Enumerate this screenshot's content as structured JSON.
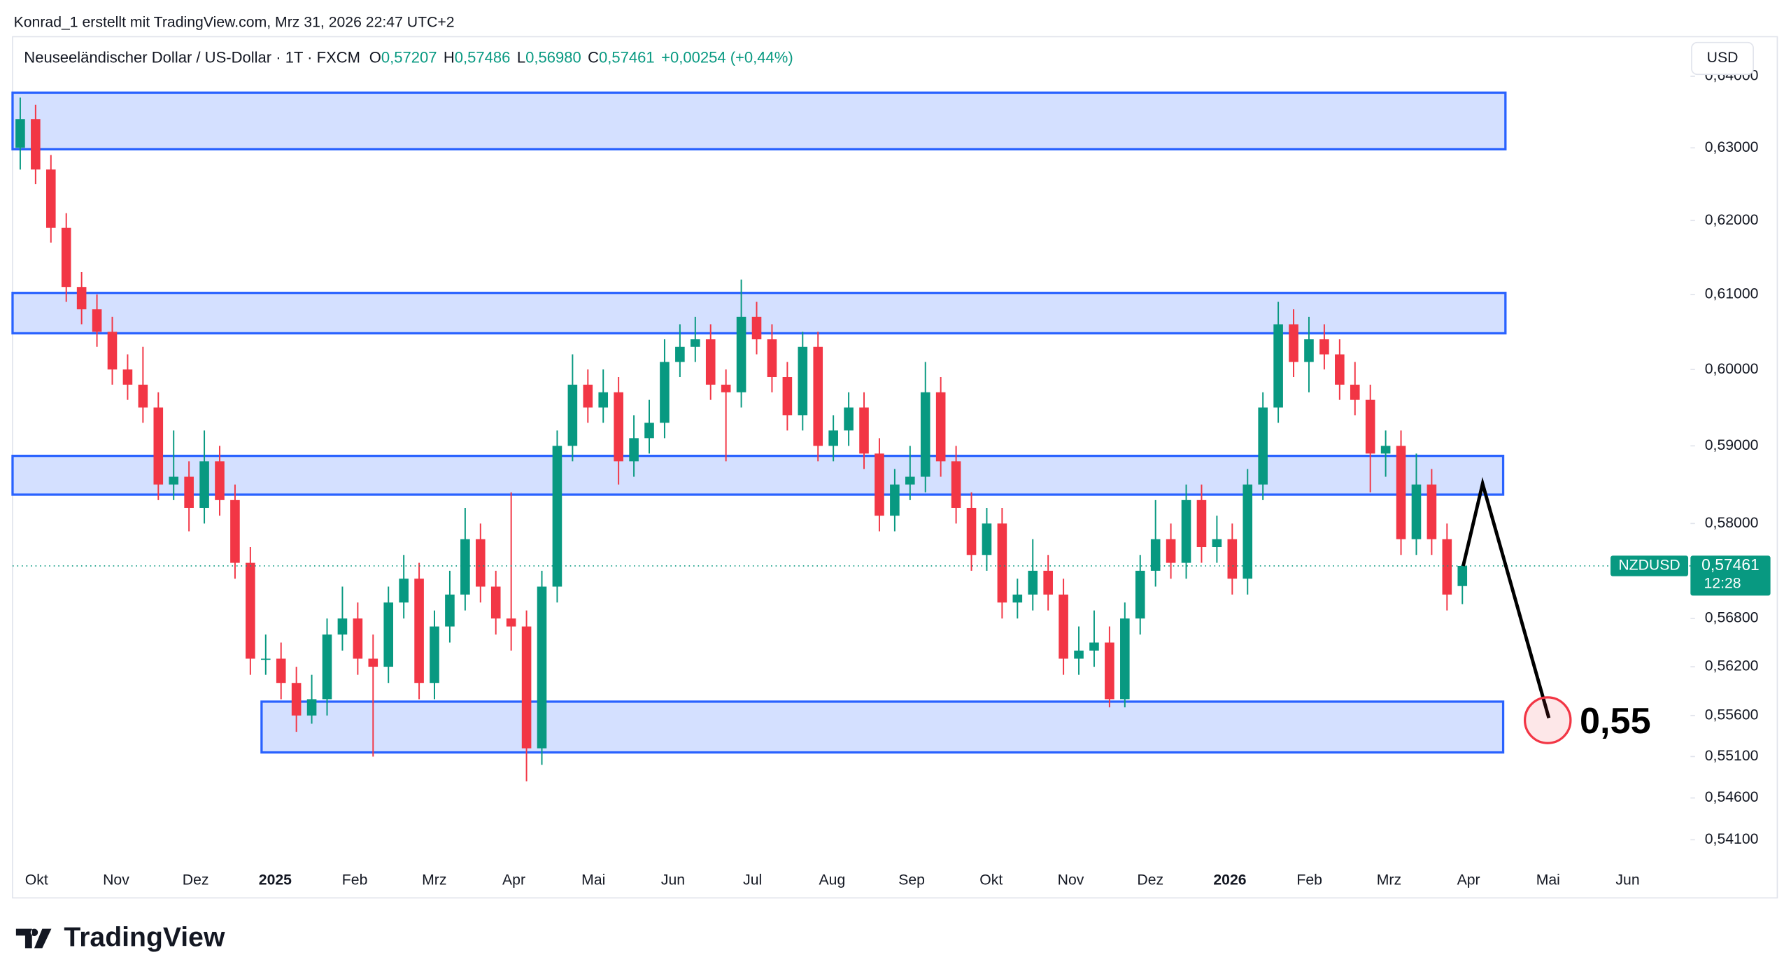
{
  "header": {
    "credit": "Konrad_1 erstellt mit TradingView.com, Mrz 31, 2026 22:47 UTC+2",
    "symbol": "Neuseeländischer Dollar / US-Dollar · 1T · FXCM",
    "o_key": "O",
    "o": "0,57207",
    "h_key": "H",
    "h": "0,57486",
    "l_key": "L",
    "l": "0,56980",
    "c_key": "C",
    "c": "0,57461",
    "change": "+0,00254 (+0,44%)",
    "currency": "USD",
    "brand": "TradingView"
  },
  "chart_data": {
    "type": "candlestick",
    "log_scale": true,
    "up_color": "#089981",
    "down_color": "#f23645",
    "ylim": [
      0.5383,
      0.6456
    ],
    "yticks": [
      {
        "value": 0.64,
        "label": "0,64000"
      },
      {
        "value": 0.63,
        "label": "0,63000"
      },
      {
        "value": 0.62,
        "label": "0,62000"
      },
      {
        "value": 0.61,
        "label": "0,61000"
      },
      {
        "value": 0.6,
        "label": "0,60000"
      },
      {
        "value": 0.59,
        "label": "0,59000"
      },
      {
        "value": 0.58,
        "label": "0,58000"
      },
      {
        "value": 0.568,
        "label": "0,56800"
      },
      {
        "value": 0.562,
        "label": "0,56200"
      },
      {
        "value": 0.556,
        "label": "0,55600"
      },
      {
        "value": 0.551,
        "label": "0,55100"
      },
      {
        "value": 0.546,
        "label": "0,54600"
      },
      {
        "value": 0.541,
        "label": "0,54100"
      }
    ],
    "xlabels": [
      "Okt",
      "Nov",
      "Dez",
      "2025",
      "Feb",
      "Mrz",
      "Apr",
      "Mai",
      "Jun",
      "Jul",
      "Aug",
      "Sep",
      "Okt",
      "Nov",
      "Dez",
      "2026",
      "Feb",
      "Mrz",
      "Apr",
      "Mai",
      "Jun"
    ],
    "candles": [
      [
        0.63,
        0.637,
        0.627,
        0.634
      ],
      [
        0.634,
        0.636,
        0.625,
        0.627
      ],
      [
        0.627,
        0.629,
        0.617,
        0.619
      ],
      [
        0.619,
        0.621,
        0.609,
        0.611
      ],
      [
        0.611,
        0.613,
        0.606,
        0.608
      ],
      [
        0.608,
        0.61,
        0.603,
        0.605
      ],
      [
        0.605,
        0.607,
        0.598,
        0.6
      ],
      [
        0.6,
        0.602,
        0.596,
        0.598
      ],
      [
        0.598,
        0.603,
        0.593,
        0.595
      ],
      [
        0.595,
        0.597,
        0.583,
        0.585
      ],
      [
        0.585,
        0.592,
        0.583,
        0.586
      ],
      [
        0.586,
        0.588,
        0.579,
        0.582
      ],
      [
        0.582,
        0.592,
        0.58,
        0.588
      ],
      [
        0.588,
        0.59,
        0.581,
        0.583
      ],
      [
        0.583,
        0.585,
        0.573,
        0.575
      ],
      [
        0.575,
        0.577,
        0.561,
        0.563
      ],
      [
        0.563,
        0.566,
        0.561,
        0.563
      ],
      [
        0.563,
        0.565,
        0.558,
        0.56
      ],
      [
        0.56,
        0.562,
        0.554,
        0.556
      ],
      [
        0.556,
        0.561,
        0.555,
        0.558
      ],
      [
        0.558,
        0.568,
        0.556,
        0.566
      ],
      [
        0.566,
        0.572,
        0.564,
        0.568
      ],
      [
        0.568,
        0.57,
        0.561,
        0.563
      ],
      [
        0.563,
        0.566,
        0.551,
        0.562
      ],
      [
        0.562,
        0.572,
        0.56,
        0.57
      ],
      [
        0.57,
        0.576,
        0.568,
        0.573
      ],
      [
        0.573,
        0.575,
        0.558,
        0.56
      ],
      [
        0.56,
        0.569,
        0.558,
        0.567
      ],
      [
        0.567,
        0.574,
        0.565,
        0.571
      ],
      [
        0.571,
        0.582,
        0.569,
        0.578
      ],
      [
        0.578,
        0.58,
        0.57,
        0.572
      ],
      [
        0.572,
        0.574,
        0.566,
        0.568
      ],
      [
        0.568,
        0.584,
        0.564,
        0.567
      ],
      [
        0.567,
        0.569,
        0.548,
        0.552
      ],
      [
        0.552,
        0.574,
        0.55,
        0.572
      ],
      [
        0.572,
        0.592,
        0.57,
        0.59
      ],
      [
        0.59,
        0.602,
        0.588,
        0.598
      ],
      [
        0.598,
        0.6,
        0.593,
        0.595
      ],
      [
        0.595,
        0.6,
        0.593,
        0.597
      ],
      [
        0.597,
        0.599,
        0.585,
        0.588
      ],
      [
        0.588,
        0.594,
        0.586,
        0.591
      ],
      [
        0.591,
        0.596,
        0.589,
        0.593
      ],
      [
        0.593,
        0.604,
        0.591,
        0.601
      ],
      [
        0.601,
        0.606,
        0.599,
        0.603
      ],
      [
        0.603,
        0.607,
        0.601,
        0.604
      ],
      [
        0.604,
        0.606,
        0.596,
        0.598
      ],
      [
        0.598,
        0.6,
        0.588,
        0.597
      ],
      [
        0.597,
        0.612,
        0.595,
        0.607
      ],
      [
        0.607,
        0.609,
        0.602,
        0.604
      ],
      [
        0.604,
        0.606,
        0.597,
        0.599
      ],
      [
        0.599,
        0.601,
        0.592,
        0.594
      ],
      [
        0.594,
        0.605,
        0.592,
        0.603
      ],
      [
        0.603,
        0.605,
        0.588,
        0.59
      ],
      [
        0.59,
        0.594,
        0.588,
        0.592
      ],
      [
        0.592,
        0.597,
        0.59,
        0.595
      ],
      [
        0.595,
        0.597,
        0.587,
        0.589
      ],
      [
        0.589,
        0.591,
        0.579,
        0.581
      ],
      [
        0.581,
        0.587,
        0.579,
        0.585
      ],
      [
        0.585,
        0.59,
        0.583,
        0.586
      ],
      [
        0.586,
        0.601,
        0.584,
        0.597
      ],
      [
        0.597,
        0.599,
        0.586,
        0.588
      ],
      [
        0.588,
        0.59,
        0.58,
        0.582
      ],
      [
        0.582,
        0.584,
        0.574,
        0.576
      ],
      [
        0.576,
        0.582,
        0.574,
        0.58
      ],
      [
        0.58,
        0.582,
        0.568,
        0.57
      ],
      [
        0.57,
        0.573,
        0.568,
        0.571
      ],
      [
        0.571,
        0.578,
        0.569,
        0.574
      ],
      [
        0.574,
        0.576,
        0.569,
        0.571
      ],
      [
        0.571,
        0.573,
        0.561,
        0.563
      ],
      [
        0.563,
        0.567,
        0.561,
        0.564
      ],
      [
        0.564,
        0.569,
        0.562,
        0.565
      ],
      [
        0.565,
        0.567,
        0.557,
        0.558
      ],
      [
        0.558,
        0.57,
        0.557,
        0.568
      ],
      [
        0.568,
        0.576,
        0.566,
        0.574
      ],
      [
        0.574,
        0.583,
        0.572,
        0.578
      ],
      [
        0.578,
        0.58,
        0.573,
        0.575
      ],
      [
        0.575,
        0.585,
        0.573,
        0.583
      ],
      [
        0.583,
        0.585,
        0.575,
        0.577
      ],
      [
        0.577,
        0.581,
        0.575,
        0.578
      ],
      [
        0.578,
        0.58,
        0.571,
        0.573
      ],
      [
        0.573,
        0.587,
        0.571,
        0.585
      ],
      [
        0.585,
        0.597,
        0.583,
        0.595
      ],
      [
        0.595,
        0.609,
        0.593,
        0.606
      ],
      [
        0.606,
        0.608,
        0.599,
        0.601
      ],
      [
        0.601,
        0.607,
        0.597,
        0.604
      ],
      [
        0.604,
        0.606,
        0.6,
        0.602
      ],
      [
        0.602,
        0.604,
        0.596,
        0.598
      ],
      [
        0.598,
        0.601,
        0.594,
        0.596
      ],
      [
        0.596,
        0.598,
        0.584,
        0.589
      ],
      [
        0.589,
        0.592,
        0.586,
        0.59
      ],
      [
        0.59,
        0.592,
        0.576,
        0.578
      ],
      [
        0.578,
        0.589,
        0.576,
        0.585
      ],
      [
        0.585,
        0.587,
        0.576,
        0.578
      ],
      [
        0.578,
        0.58,
        0.569,
        0.571
      ],
      [
        0.57207,
        0.57486,
        0.5698,
        0.57461
      ]
    ],
    "zones": [
      {
        "low": 0.6298,
        "high": 0.6377
      },
      {
        "low": 0.6048,
        "high": 0.6102
      },
      {
        "low": 0.5837,
        "high": 0.5887
      },
      {
        "low": 0.5515,
        "high": 0.5577
      }
    ],
    "zone_color": "#2962ff",
    "projection": {
      "values": [
        0.5746,
        0.5851,
        0.5557
      ],
      "label": "0,55"
    },
    "last_price": {
      "value": 0.57461,
      "label": "0,57461",
      "countdown": "12:28",
      "symbol": "NZDUSD"
    }
  }
}
